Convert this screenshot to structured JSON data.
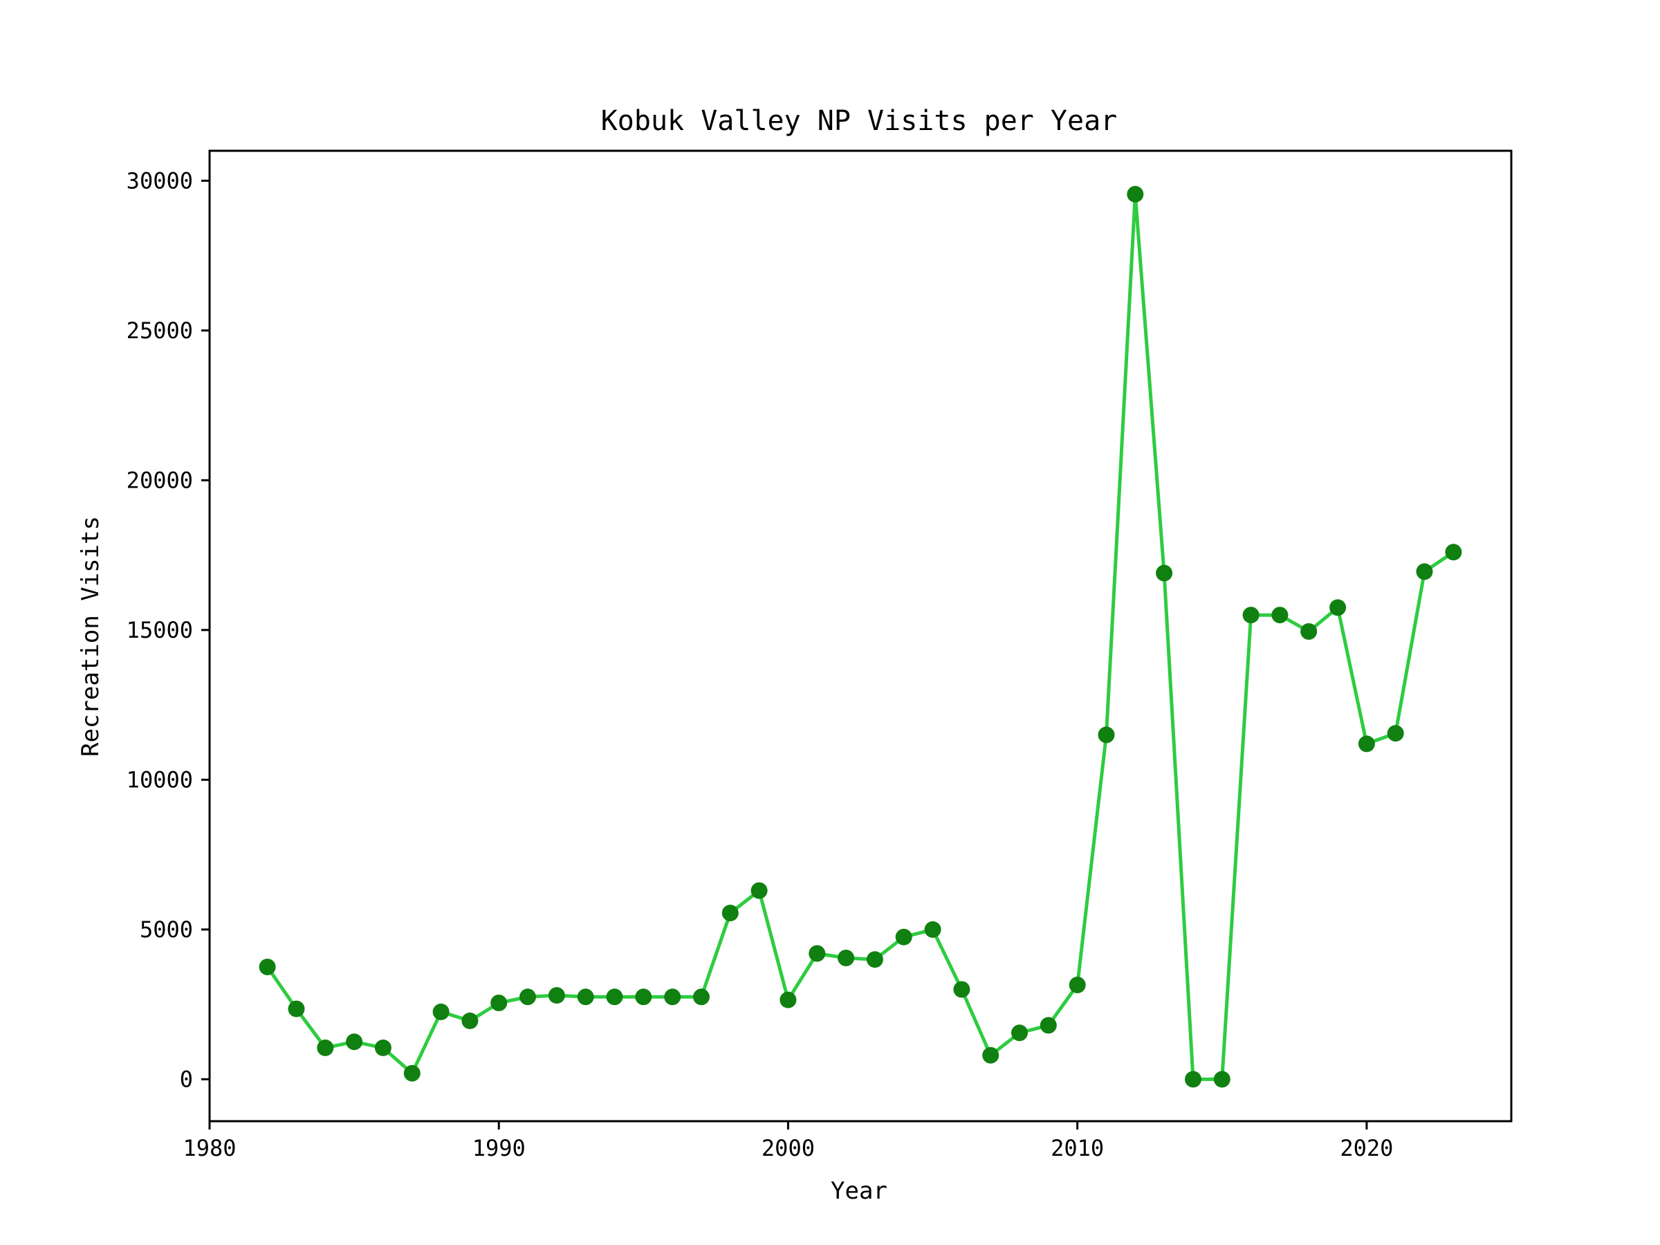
{
  "chart_data": {
    "type": "line",
    "title": "Kobuk Valley NP Visits per Year",
    "xlabel": "Year",
    "ylabel": "Recreation Visits",
    "xlim": [
      1980,
      2025
    ],
    "ylim": [
      -1400,
      31000
    ],
    "x_ticks": [
      1980,
      1990,
      2000,
      2010,
      2020
    ],
    "y_ticks": [
      0,
      5000,
      10000,
      15000,
      20000,
      25000,
      30000
    ],
    "grid": false,
    "line_color": "#2ecc40",
    "marker_color": "#108010",
    "series": [
      {
        "x": [
          1982,
          1983,
          1984,
          1985,
          1986,
          1987,
          1988,
          1989,
          1990,
          1991,
          1992,
          1993,
          1994,
          1995,
          1996,
          1997,
          1998,
          1999,
          2000,
          2001,
          2002,
          2003,
          2004,
          2005,
          2006,
          2007,
          2008,
          2009,
          2010,
          2011,
          2012,
          2013,
          2014,
          2015,
          2016,
          2017,
          2018,
          2019,
          2020,
          2021,
          2022,
          2023
        ],
        "values": [
          3750,
          2350,
          1050,
          1250,
          1050,
          200,
          2250,
          1950,
          2550,
          2750,
          2800,
          2750,
          2750,
          2750,
          2750,
          2750,
          5550,
          6300,
          2650,
          4200,
          4050,
          4000,
          4750,
          5000,
          3000,
          800,
          1550,
          1800,
          3150,
          11500,
          29550,
          16900,
          0,
          0,
          15500,
          15500,
          14950,
          15750,
          11200,
          11550,
          16950,
          17600
        ]
      }
    ]
  }
}
